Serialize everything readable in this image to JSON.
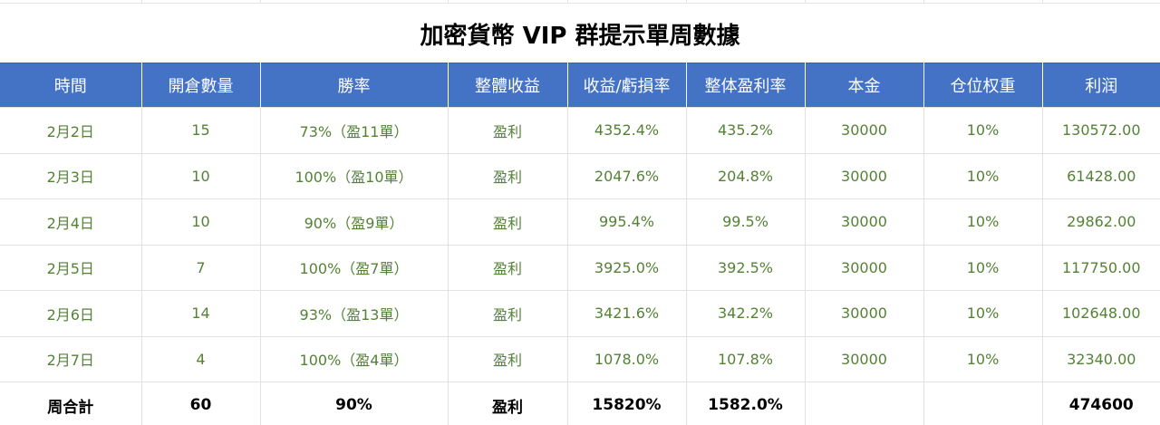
{
  "title": "加密貨幣 VIP 群提示單周數據",
  "columns": [
    "時間",
    "開倉數量",
    "勝率",
    "整體收益",
    "收益/虧損率",
    "整体盈利率",
    "本金",
    "仓位权重",
    "利润"
  ],
  "rows": [
    [
      "2月2日",
      "15",
      "73%（盈11單）",
      "盈利",
      "4352.4%",
      "435.2%",
      "30000",
      "10%",
      "130572.00"
    ],
    [
      "2月3日",
      "10",
      "100%（盈10單）",
      "盈利",
      "2047.6%",
      "204.8%",
      "30000",
      "10%",
      "61428.00"
    ],
    [
      "2月4日",
      "10",
      "90%（盈9單）",
      "盈利",
      "995.4%",
      "99.5%",
      "30000",
      "10%",
      "29862.00"
    ],
    [
      "2月5日",
      "7",
      "100%（盈7單）",
      "盈利",
      "3925.0%",
      "392.5%",
      "30000",
      "10%",
      "117750.00"
    ],
    [
      "2月6日",
      "14",
      "93%（盈13單）",
      "盈利",
      "3421.6%",
      "342.2%",
      "30000",
      "10%",
      "102648.00"
    ],
    [
      "2月7日",
      "4",
      "100%（盈4單）",
      "盈利",
      "1078.0%",
      "107.8%",
      "30000",
      "10%",
      "32340.00"
    ]
  ],
  "total_row": [
    "周合計",
    "60",
    "90%",
    "盈利",
    "15820%",
    "1582.0%",
    "",
    "",
    "474600"
  ],
  "colors": {
    "header_bg": "#4472c4",
    "header_text": "#ffffff",
    "data_text": "#548235",
    "total_text": "#000000",
    "grid_line": "#e2e2e2"
  }
}
